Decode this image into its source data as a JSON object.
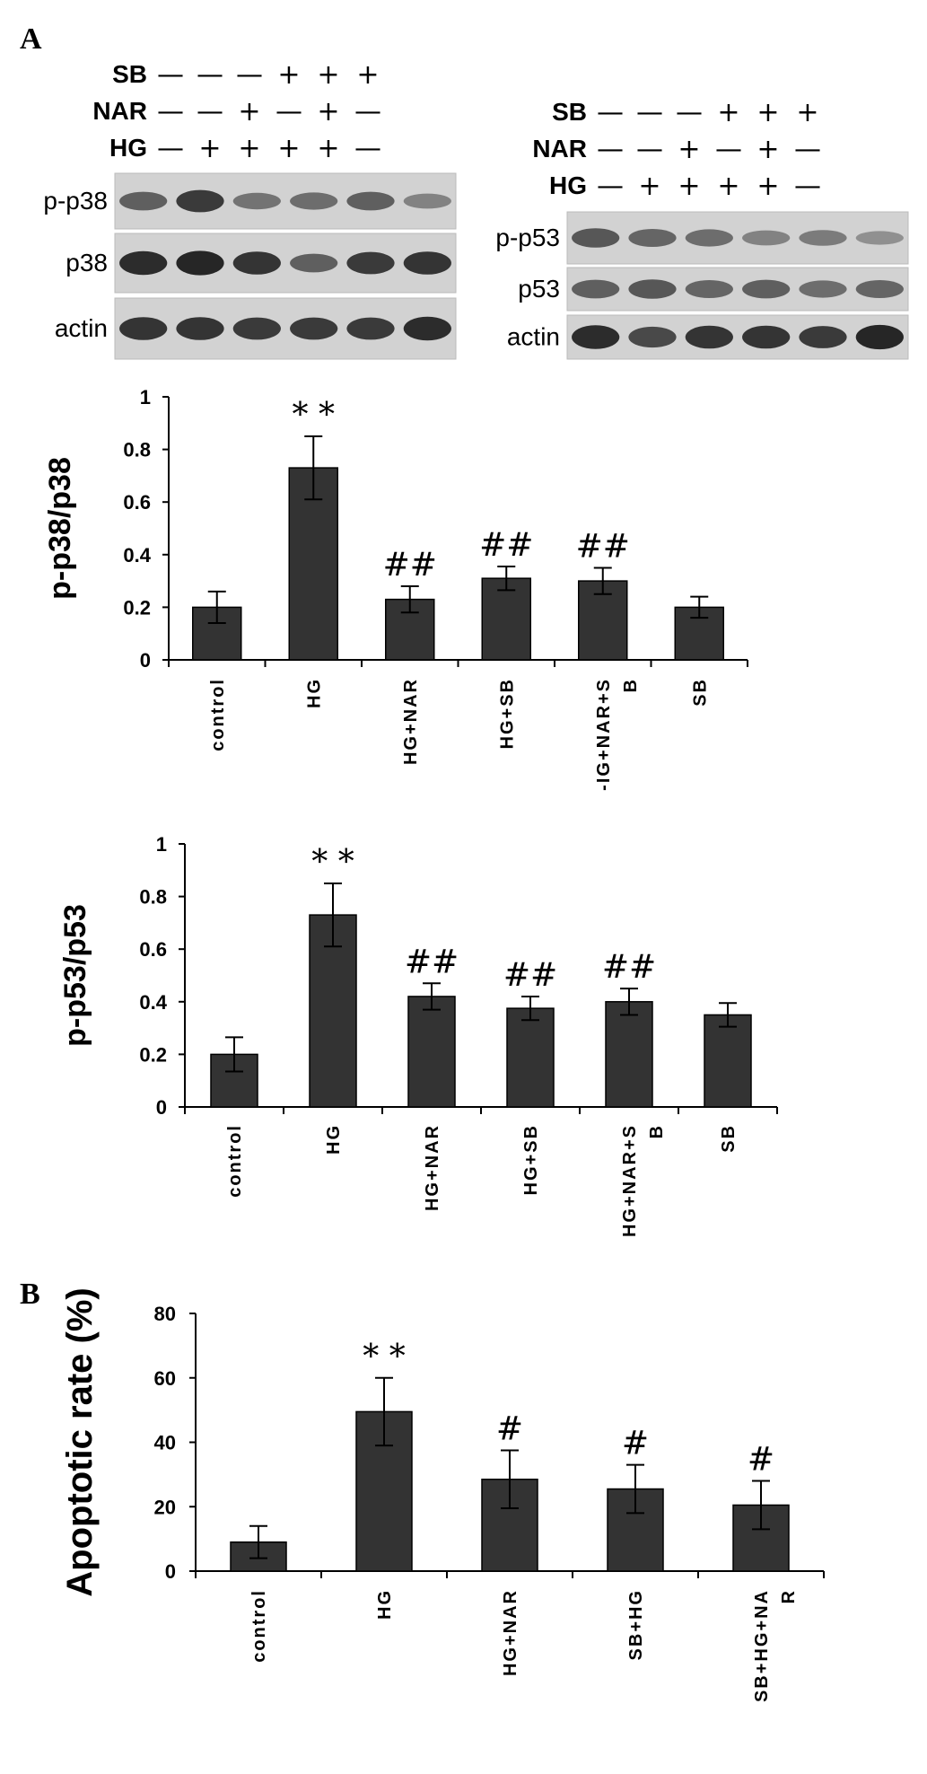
{
  "figure": {
    "panel_a_label": "A",
    "panel_b_label": "B"
  },
  "blots": [
    {
      "id": "p38-blot",
      "treatments": [
        {
          "name": "SB",
          "signs": [
            "—",
            "—",
            "—",
            "+",
            "+",
            "+"
          ]
        },
        {
          "name": "NAR",
          "signs": [
            "—",
            "—",
            "+",
            "—",
            "+",
            "—"
          ]
        },
        {
          "name": "HG",
          "signs": [
            "—",
            "+",
            "+",
            "+",
            "+",
            "—"
          ]
        }
      ],
      "bands": [
        {
          "label": "p-p38",
          "intensity": [
            0.55,
            0.8,
            0.4,
            0.45,
            0.55,
            0.3
          ]
        },
        {
          "label": "p38",
          "intensity": [
            0.9,
            0.95,
            0.85,
            0.55,
            0.8,
            0.85
          ]
        },
        {
          "label": "actin",
          "intensity": [
            0.85,
            0.85,
            0.8,
            0.8,
            0.8,
            0.9
          ]
        }
      ]
    },
    {
      "id": "p53-blot",
      "treatments": [
        {
          "name": "SB",
          "signs": [
            "—",
            "—",
            "—",
            "+",
            "+",
            "+"
          ]
        },
        {
          "name": "NAR",
          "signs": [
            "—",
            "—",
            "+",
            "—",
            "+",
            "—"
          ]
        },
        {
          "name": "HG",
          "signs": [
            "—",
            "+",
            "+",
            "+",
            "+",
            "—"
          ]
        }
      ],
      "bands": [
        {
          "label": "p-p53",
          "intensity": [
            0.6,
            0.5,
            0.45,
            0.3,
            0.35,
            0.2
          ]
        },
        {
          "label": "p53",
          "intensity": [
            0.55,
            0.6,
            0.5,
            0.55,
            0.45,
            0.5
          ]
        },
        {
          "label": "actin",
          "intensity": [
            0.9,
            0.7,
            0.85,
            0.85,
            0.8,
            0.95
          ]
        }
      ]
    }
  ],
  "chart_data": [
    {
      "type": "bar",
      "title": "",
      "xlabel": "",
      "ylabel": "p-p38/p38",
      "categories": [
        "control",
        "HG",
        "HG+NAR",
        "HG+SB",
        "HG+NAR+SB",
        "SB"
      ],
      "category_display": [
        "control",
        "HG",
        "HG+NAR",
        "HG+SB",
        "-IG+NAR+S|B",
        "SB"
      ],
      "values": [
        0.2,
        0.73,
        0.23,
        0.31,
        0.3,
        0.2
      ],
      "errors": [
        0.06,
        0.12,
        0.05,
        0.045,
        0.05,
        0.04
      ],
      "annotations": [
        "",
        "* *",
        "##",
        "##",
        "##",
        ""
      ],
      "ylim": [
        0,
        1
      ],
      "yticks": [
        "0",
        "0.2",
        "0.4",
        "0.6",
        "0.8",
        "1"
      ],
      "grid": false
    },
    {
      "type": "bar",
      "title": "",
      "xlabel": "",
      "ylabel": "p-p53/p53",
      "categories": [
        "control",
        "HG",
        "HG+NAR",
        "HG+SB",
        "HG+NAR+SB",
        "SB"
      ],
      "category_display": [
        "control",
        "HG",
        "HG+NAR",
        "HG+SB",
        "HG+NAR+S|B",
        "SB"
      ],
      "values": [
        0.2,
        0.73,
        0.42,
        0.375,
        0.4,
        0.35
      ],
      "errors": [
        0.065,
        0.12,
        0.05,
        0.045,
        0.05,
        0.045
      ],
      "annotations": [
        "",
        "* *",
        "##",
        "##",
        "##",
        ""
      ],
      "ylim": [
        0,
        1
      ],
      "yticks": [
        "0",
        "0.2",
        "0.4",
        "0.6",
        "0.8",
        "1"
      ],
      "grid": false
    },
    {
      "type": "bar",
      "title": "",
      "xlabel": "",
      "ylabel": "Apoptotic rate (%)",
      "categories": [
        "control",
        "HG",
        "HG+NAR",
        "SB+HG",
        "SB+HG+NAR"
      ],
      "category_display": [
        "control",
        "HG",
        "HG+NAR",
        "SB+HG",
        "SB+HG+NA|R"
      ],
      "values": [
        9,
        49.5,
        28.5,
        25.5,
        20.5
      ],
      "errors": [
        5,
        10.5,
        9,
        7.5,
        7.5
      ],
      "annotations": [
        "",
        "* *",
        "#",
        "#",
        "#"
      ],
      "ylim": [
        0,
        80
      ],
      "yticks": [
        "0",
        "20",
        "40",
        "60",
        "80"
      ],
      "grid": false
    }
  ]
}
